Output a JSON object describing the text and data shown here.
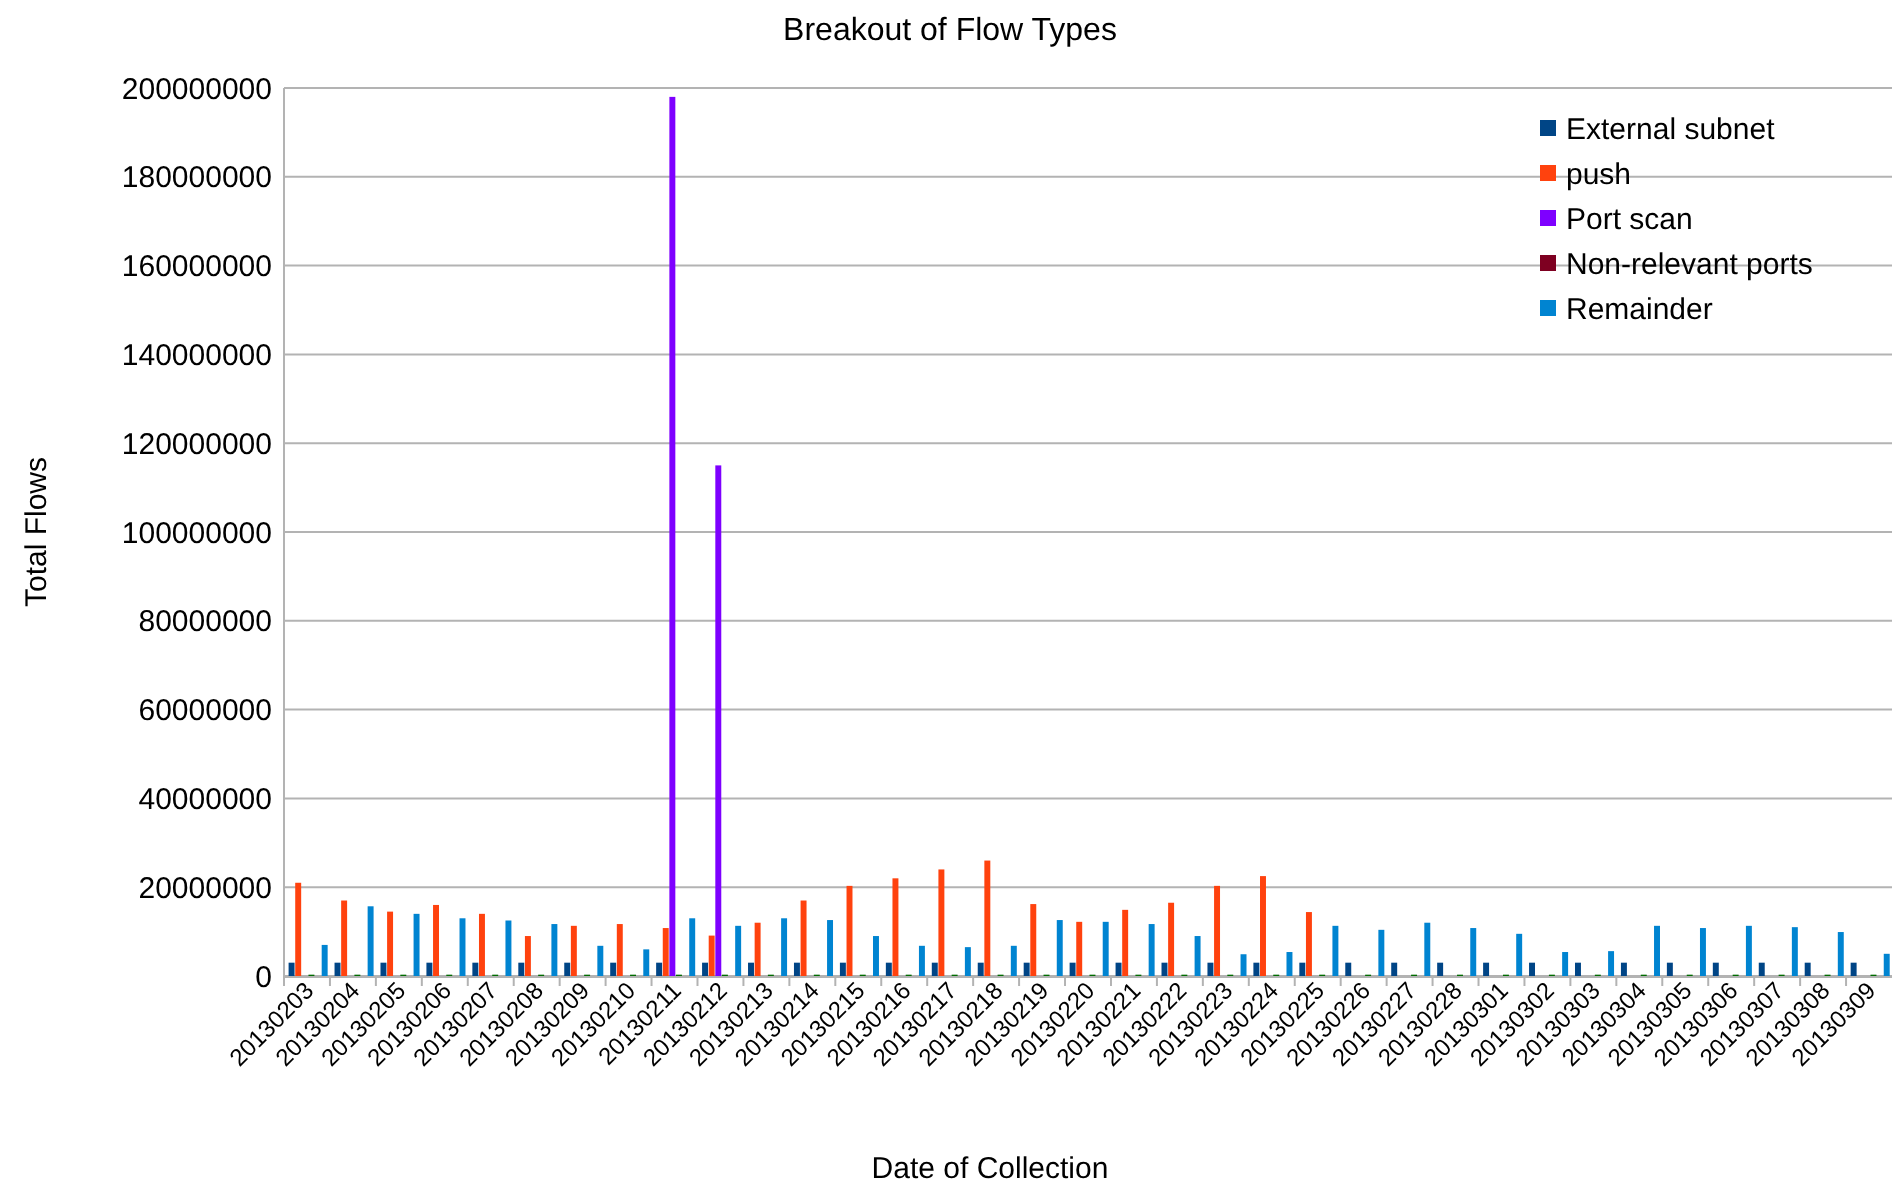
{
  "chart_data": {
    "type": "bar",
    "title": "Breakout of Flow Types",
    "xlabel": "Date of Collection",
    "ylabel": "Total Flows",
    "categories": [
      "20130203",
      "20130204",
      "20130205",
      "20130206",
      "20130207",
      "20130208",
      "20130209",
      "20130210",
      "20130211",
      "20130212",
      "20130213",
      "20130214",
      "20130215",
      "20130216",
      "20130217",
      "20130218",
      "20130219",
      "20130220",
      "20130221",
      "20130222",
      "20130223",
      "20130224",
      "20130225",
      "20130226",
      "20130227",
      "20130228",
      "20130301",
      "20130302",
      "20130303",
      "20130304",
      "20130305",
      "20130306",
      "20130307",
      "20130308",
      "20130309"
    ],
    "series": [
      {
        "name": "External subnet",
        "color": "#004586",
        "values": [
          3000000,
          3000000,
          3000000,
          3000000,
          3000000,
          3000000,
          3000000,
          3000000,
          3000000,
          3000000,
          3000000,
          3000000,
          3000000,
          3000000,
          3000000,
          3000000,
          3000000,
          3000000,
          3000000,
          3000000,
          3000000,
          3000000,
          3000000,
          3000000,
          3000000,
          3000000,
          3000000,
          3000000,
          3000000,
          3000000,
          3000000,
          3000000,
          3000000,
          3000000,
          3000000
        ]
      },
      {
        "name": "push",
        "color": "#ff420e",
        "values": [
          21000000,
          17000000,
          14500000,
          16000000,
          14000000,
          9000000,
          11300000,
          11700000,
          10800000,
          9100000,
          12000000,
          17000000,
          20300000,
          22000000,
          24000000,
          26000000,
          16200000,
          12200000,
          14900000,
          16500000,
          20300000,
          22500000,
          14400000,
          0,
          0,
          0,
          0,
          0,
          0,
          0,
          0,
          0,
          0,
          0,
          0
        ]
      },
      {
        "name": "Port scan",
        "color": "#7e00ff",
        "values": [
          0,
          0,
          0,
          0,
          0,
          0,
          0,
          0,
          198000000,
          115000000,
          0,
          0,
          0,
          0,
          0,
          0,
          0,
          0,
          0,
          0,
          0,
          0,
          0,
          0,
          0,
          0,
          0,
          0,
          0,
          0,
          0,
          0,
          0,
          0,
          0
        ]
      },
      {
        "color": "#006b00",
        "values": [
          300000,
          300000,
          300000,
          300000,
          300000,
          300000,
          300000,
          300000,
          300000,
          300000,
          300000,
          300000,
          300000,
          300000,
          300000,
          300000,
          300000,
          300000,
          300000,
          300000,
          300000,
          300000,
          300000,
          300000,
          300000,
          300000,
          300000,
          300000,
          300000,
          300000,
          300000,
          300000,
          300000,
          300000,
          300000
        ]
      },
      {
        "name": "Non-relevant ports",
        "color": "#7e0021",
        "values": [
          0,
          0,
          0,
          0,
          0,
          0,
          0,
          0,
          0,
          0,
          0,
          0,
          0,
          0,
          0,
          0,
          0,
          0,
          0,
          0,
          0,
          0,
          0,
          0,
          0,
          0,
          0,
          0,
          0,
          0,
          0,
          0,
          0,
          0,
          0
        ]
      },
      {
        "name": "Remainder",
        "color": "#0084d1",
        "values": [
          7000000,
          15700000,
          14000000,
          13000000,
          12500000,
          11700000,
          6800000,
          6000000,
          13000000,
          11300000,
          13000000,
          12600000,
          9000000,
          6800000,
          6500000,
          6800000,
          12600000,
          12200000,
          11700000,
          9000000,
          4900000,
          5400000,
          11300000,
          10400000,
          12000000,
          10800000,
          9500000,
          5400000,
          5600000,
          11300000,
          10800000,
          11300000,
          11000000,
          9900000,
          5000000
        ]
      }
    ],
    "ylim": [
      0,
      200000000
    ],
    "yticks": [
      0,
      20000000,
      40000000,
      60000000,
      80000000,
      100000000,
      120000000,
      140000000,
      160000000,
      180000000,
      200000000
    ],
    "grid": "y",
    "legend": "top right"
  }
}
